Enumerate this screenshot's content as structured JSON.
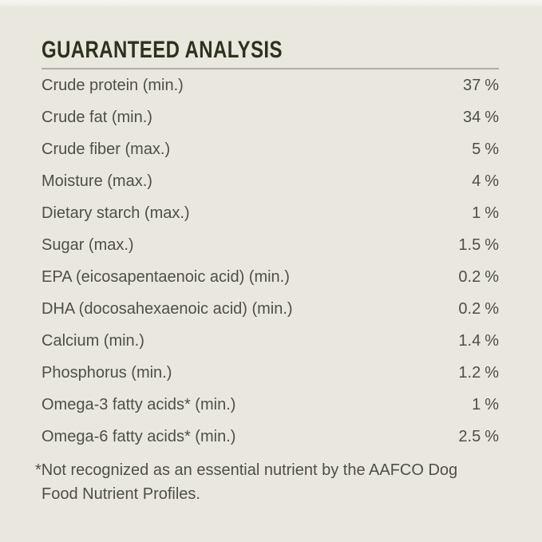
{
  "title": "GUARANTEED ANALYSIS",
  "table": {
    "unit": "%",
    "rows": [
      {
        "label": "Crude protein (min.)",
        "value": "37"
      },
      {
        "label": "Crude fat (min.)",
        "value": "34"
      },
      {
        "label": "Crude fiber (max.)",
        "value": "5"
      },
      {
        "label": "Moisture (max.)",
        "value": "4"
      },
      {
        "label": "Dietary starch (max.)",
        "value": "1"
      },
      {
        "label": "Sugar (max.)",
        "value": "1.5"
      },
      {
        "label": "EPA (eicosapentaenoic acid) (min.)",
        "value": "0.2"
      },
      {
        "label": "DHA (docosahexaenoic acid) (min.)",
        "value": "0.2"
      },
      {
        "label": "Calcium (min.)",
        "value": "1.4"
      },
      {
        "label": "Phosphorus (min.)",
        "value": "1.2"
      },
      {
        "label": "Omega-3 fatty acids* (min.)",
        "value": "1"
      },
      {
        "label": "Omega-6 fatty acids* (min.)",
        "value": "2.5"
      }
    ]
  },
  "footnote": {
    "lines": [
      "*Not recognized as an essential nutrient by the AAFCO Dog",
      "Food Nutrient Profiles."
    ]
  },
  "colors": {
    "background": "#eae8de",
    "title_text": "#2d321d",
    "body_text": "#4e4f47",
    "divider": "#aeada1"
  }
}
